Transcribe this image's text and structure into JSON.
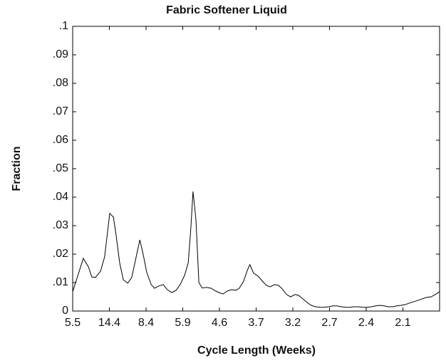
{
  "chart_data": {
    "type": "line",
    "title": "Fabric Softener Liquid",
    "x_label": "Cycle Length (Weeks)",
    "y_label": "Fraction",
    "xlim": [
      0,
      100
    ],
    "ylim": [
      0,
      0.1
    ],
    "xticks": [
      {
        "value": 0,
        "label": "5.5"
      },
      {
        "value": 10,
        "label": "14.4"
      },
      {
        "value": 20,
        "label": "8.4"
      },
      {
        "value": 30,
        "label": "5.9"
      },
      {
        "value": 40,
        "label": "4.6"
      },
      {
        "value": 50,
        "label": "3.7"
      },
      {
        "value": 60,
        "label": "3.2"
      },
      {
        "value": 70,
        "label": "2.7"
      },
      {
        "value": 80,
        "label": "2.4"
      },
      {
        "value": 90,
        "label": "2.1"
      }
    ],
    "yticks": [
      0,
      {
        "value": 0.01,
        "label": ".01"
      },
      {
        "value": 0.02,
        "label": ".02"
      },
      {
        "value": 0.03,
        "label": ".03"
      },
      {
        "value": 0.04,
        "label": ".04"
      },
      {
        "value": 0.05,
        "label": ".05"
      },
      {
        "value": 0.06,
        "label": ".06"
      },
      {
        "value": 0.07,
        "label": ".07"
      },
      {
        "value": 0.08,
        "label": ".08"
      },
      {
        "value": 0.09,
        "label": ".09"
      },
      {
        "value": 0.1,
        "label": ".1"
      }
    ],
    "color": "#000000",
    "x": [
      0,
      2.9,
      4.3,
      5.2,
      6.2,
      7.6,
      8.7,
      9.3,
      10.1,
      11.1,
      11.8,
      12.8,
      13.8,
      15.0,
      16.1,
      17.3,
      18.3,
      19.2,
      20.2,
      21.4,
      22.3,
      23.5,
      24.7,
      25.8,
      27.0,
      28.2,
      29.3,
      30.5,
      31.5,
      32.2,
      32.8,
      33.6,
      34.4,
      35.3,
      36.5,
      37.7,
      38.6,
      39.8,
      41.0,
      42.1,
      43.3,
      44.5,
      45.4,
      46.6,
      47.6,
      48.3,
      49.3,
      50.5,
      51.7,
      52.8,
      53.8,
      55.0,
      56.1,
      57.1,
      58.3,
      59.4,
      60.6,
      61.6,
      62.7,
      63.9,
      65.0,
      66.2,
      67.4,
      68.5,
      69.7,
      70.9,
      72.0,
      73.2,
      74.4,
      75.5,
      76.7,
      77.9,
      79.0,
      80.2,
      81.4,
      82.5,
      83.7,
      84.9,
      86.0,
      87.2,
      88.3,
      89.5,
      90.7,
      91.8,
      93.0,
      94.2,
      95.3,
      96.5,
      97.7,
      98.8,
      100
    ],
    "values": [
      0.0068,
      0.0185,
      0.0155,
      0.012,
      0.0118,
      0.014,
      0.019,
      0.0255,
      0.0343,
      0.033,
      0.027,
      0.017,
      0.011,
      0.0098,
      0.0118,
      0.019,
      0.025,
      0.02,
      0.0135,
      0.0093,
      0.008,
      0.0088,
      0.0093,
      0.0075,
      0.0065,
      0.0073,
      0.0093,
      0.0125,
      0.017,
      0.029,
      0.042,
      0.032,
      0.01,
      0.0081,
      0.0083,
      0.008,
      0.0073,
      0.0065,
      0.006,
      0.007,
      0.0075,
      0.0073,
      0.008,
      0.0105,
      0.0143,
      0.0163,
      0.0133,
      0.0123,
      0.0105,
      0.009,
      0.0085,
      0.0093,
      0.009,
      0.0078,
      0.0058,
      0.005,
      0.0058,
      0.0055,
      0.0043,
      0.003,
      0.002,
      0.0015,
      0.0013,
      0.0013,
      0.0015,
      0.0018,
      0.0018,
      0.0015,
      0.0013,
      0.0013,
      0.0015,
      0.0015,
      0.0013,
      0.0013,
      0.0015,
      0.0018,
      0.002,
      0.0018,
      0.0015,
      0.0015,
      0.0018,
      0.002,
      0.0023,
      0.0028,
      0.0033,
      0.0038,
      0.0043,
      0.0048,
      0.005,
      0.0058,
      0.0068
    ]
  }
}
